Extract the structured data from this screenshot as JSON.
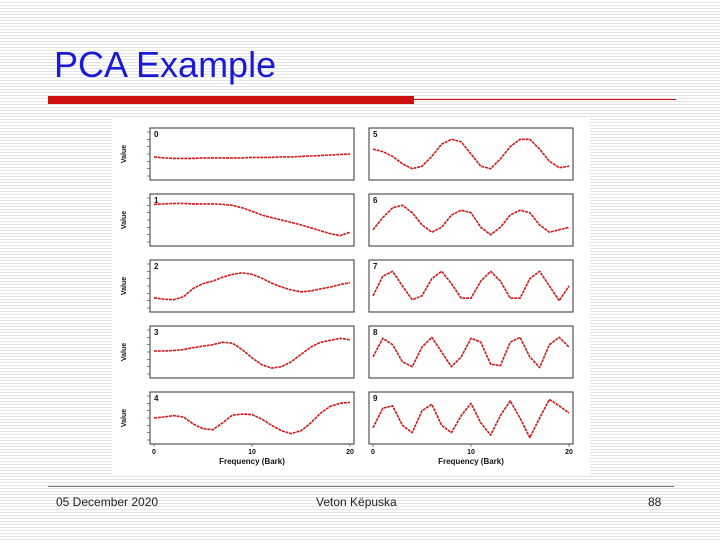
{
  "slide": {
    "title": "PCA Example",
    "footer_date": "05 December 2020",
    "footer_author": "Veton Këpuska",
    "page_number": "88"
  },
  "colors": {
    "title": "#1a1ad6",
    "accent": "#cc1010",
    "curve": "#d01818"
  },
  "chart_data": {
    "type": "line",
    "title": "",
    "xlabel": "Frequency (Bark)",
    "ylabel": "Value",
    "x_ticks": [
      "0",
      "10",
      "20"
    ],
    "xlim": [
      0,
      20
    ],
    "grid": false,
    "panels": [
      {
        "id": "0",
        "y": [
          -0.06,
          -0.08,
          -0.09,
          -0.09,
          -0.09,
          -0.08,
          -0.08,
          -0.08,
          -0.08,
          -0.08,
          -0.07,
          -0.07,
          -0.07,
          -0.06,
          -0.06,
          -0.05,
          -0.04,
          -0.03,
          -0.02,
          -0.01,
          0.0
        ]
      },
      {
        "id": "1",
        "y": [
          0.32,
          0.33,
          0.34,
          0.34,
          0.33,
          0.33,
          0.33,
          0.32,
          0.3,
          0.25,
          0.18,
          0.1,
          0.05,
          0.0,
          -0.05,
          -0.1,
          -0.16,
          -0.22,
          -0.28,
          -0.32,
          -0.25
        ]
      },
      {
        "id": "2",
        "y": [
          -0.24,
          -0.27,
          -0.28,
          -0.22,
          -0.05,
          0.05,
          0.1,
          0.18,
          0.24,
          0.27,
          0.24,
          0.16,
          0.06,
          -0.02,
          -0.08,
          -0.12,
          -0.1,
          -0.06,
          -0.02,
          0.03,
          0.07
        ]
      },
      {
        "id": "3",
        "y": [
          0.02,
          0.02,
          0.03,
          0.05,
          0.09,
          0.12,
          0.15,
          0.2,
          0.18,
          0.05,
          -0.12,
          -0.26,
          -0.33,
          -0.3,
          -0.2,
          -0.05,
          0.1,
          0.2,
          0.24,
          0.28,
          0.25
        ]
      },
      {
        "id": "4",
        "y": [
          0.0,
          0.02,
          0.05,
          0.02,
          -0.12,
          -0.22,
          -0.24,
          -0.1,
          0.06,
          0.08,
          0.07,
          -0.02,
          -0.15,
          -0.26,
          -0.32,
          -0.26,
          -0.1,
          0.1,
          0.24,
          0.3,
          0.32
        ]
      },
      {
        "id": "5",
        "y": [
          0.1,
          0.05,
          -0.05,
          -0.2,
          -0.3,
          -0.25,
          -0.05,
          0.2,
          0.3,
          0.25,
          0.0,
          -0.25,
          -0.3,
          -0.1,
          0.15,
          0.3,
          0.3,
          0.1,
          -0.15,
          -0.28,
          -0.25
        ]
      },
      {
        "id": "6",
        "y": [
          -0.2,
          0.05,
          0.25,
          0.3,
          0.15,
          -0.1,
          -0.25,
          -0.15,
          0.1,
          0.2,
          0.15,
          -0.15,
          -0.3,
          -0.15,
          0.1,
          0.2,
          0.15,
          -0.1,
          -0.25,
          -0.2,
          -0.15
        ]
      },
      {
        "id": "7",
        "y": [
          -0.2,
          0.2,
          0.3,
          0.0,
          -0.28,
          -0.2,
          0.15,
          0.3,
          0.05,
          -0.25,
          -0.25,
          0.1,
          0.3,
          0.1,
          -0.25,
          -0.25,
          0.15,
          0.3,
          0.0,
          -0.3,
          0.0
        ]
      },
      {
        "id": "8",
        "y": [
          -0.1,
          0.28,
          0.15,
          -0.2,
          -0.3,
          0.1,
          0.3,
          0.0,
          -0.3,
          -0.1,
          0.28,
          0.2,
          -0.25,
          -0.28,
          0.2,
          0.3,
          -0.1,
          -0.32,
          0.15,
          0.3,
          0.1
        ]
      },
      {
        "id": "9",
        "y": [
          -0.2,
          0.2,
          0.25,
          -0.15,
          -0.3,
          0.15,
          0.28,
          -0.15,
          -0.3,
          0.05,
          0.3,
          -0.1,
          -0.35,
          0.05,
          0.35,
          0.0,
          -0.4,
          0.0,
          0.38,
          0.25,
          0.1
        ]
      }
    ]
  }
}
